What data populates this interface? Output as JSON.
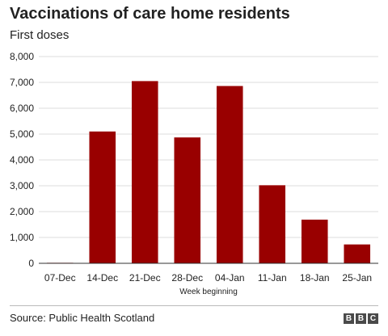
{
  "chart_data": {
    "type": "bar",
    "title": "Vaccinations of care home residents",
    "subtitle": "First doses",
    "xlabel": "Week beginning",
    "ylabel": "",
    "categories": [
      "07-Dec",
      "14-Dec",
      "21-Dec",
      "28-Dec",
      "04-Jan",
      "11-Jan",
      "18-Jan",
      "25-Jan"
    ],
    "values": [
      20,
      5100,
      7050,
      4870,
      6860,
      3020,
      1690,
      730
    ],
    "ylim": [
      0,
      8000
    ],
    "yticks": [
      0,
      1000,
      2000,
      3000,
      4000,
      5000,
      6000,
      7000,
      8000
    ],
    "ytick_labels": [
      "0",
      "1,000",
      "2,000",
      "3,000",
      "4,000",
      "5,000",
      "6,000",
      "7,000",
      "8,000"
    ],
    "grid": true,
    "bar_color": "#990000"
  },
  "footer": {
    "source": "Source: Public Health Scotland",
    "logo": [
      "B",
      "B",
      "C"
    ]
  }
}
